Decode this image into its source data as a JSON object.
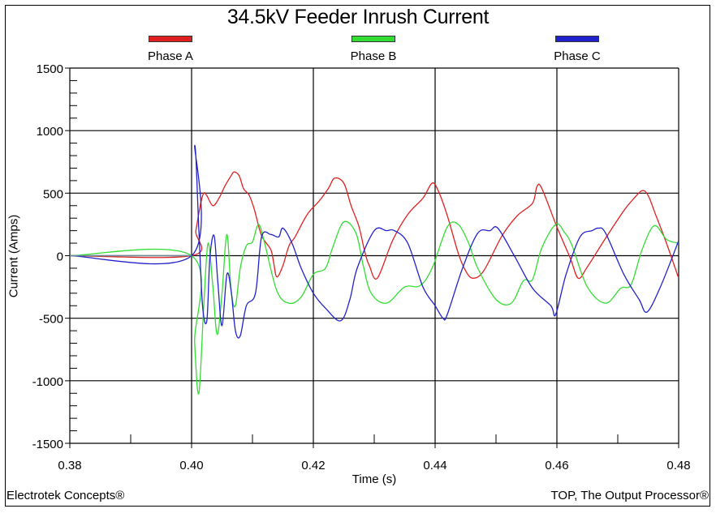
{
  "chart_data": {
    "type": "line",
    "title": "34.5kV Feeder Inrush Current",
    "xlabel": "Time (s)",
    "ylabel": "Current (Amps)",
    "xlim": [
      0.38,
      0.48
    ],
    "ylim": [
      -1500,
      1500
    ],
    "xticks": [
      "0.38",
      "0.40",
      "0.42",
      "0.44",
      "0.46",
      "0.48"
    ],
    "yticks": [
      "1500",
      "1000",
      "500",
      "0",
      "-500",
      "-1000",
      "-1500"
    ],
    "grid": true,
    "legend_position": "top",
    "series": [
      {
        "name": "Phase A",
        "color": "#e02020",
        "x": [
          0.38,
          0.4,
          0.4007,
          0.4015,
          0.402,
          0.4025,
          0.4035,
          0.4045,
          0.4055,
          0.4065,
          0.407,
          0.4078,
          0.4085,
          0.409,
          0.4095,
          0.4103,
          0.4115,
          0.413,
          0.4135,
          0.414,
          0.415,
          0.416,
          0.417,
          0.419,
          0.421,
          0.4225,
          0.4235,
          0.425,
          0.4262,
          0.4275,
          0.4285,
          0.4292,
          0.4305,
          0.433,
          0.4355,
          0.438,
          0.4395,
          0.4405,
          0.442,
          0.4438,
          0.445,
          0.4462,
          0.448,
          0.451,
          0.4535,
          0.456,
          0.4567,
          0.4575,
          0.46,
          0.4622,
          0.4635,
          0.465,
          0.468,
          0.471,
          0.4725,
          0.474,
          0.475,
          0.4762,
          0.478,
          0.48
        ],
        "values": [
          0,
          0,
          200,
          420,
          500,
          480,
          400,
          460,
          560,
          640,
          670,
          640,
          540,
          510,
          480,
          370,
          160,
          50,
          -60,
          -170,
          -80,
          80,
          150,
          330,
          440,
          540,
          620,
          580,
          400,
          230,
          20,
          -80,
          -180,
          120,
          330,
          460,
          580,
          520,
          320,
          20,
          -120,
          -180,
          -120,
          160,
          320,
          420,
          550,
          540,
          230,
          -20,
          -180,
          -90,
          140,
          360,
          450,
          520,
          480,
          330,
          100,
          -180
        ]
      },
      {
        "name": "Phase B",
        "color": "#33dd33",
        "x": [
          0.38,
          0.4,
          0.4005,
          0.4012,
          0.402,
          0.4027,
          0.4035,
          0.4042,
          0.405,
          0.4058,
          0.4065,
          0.4072,
          0.408,
          0.409,
          0.41,
          0.411,
          0.412,
          0.414,
          0.416,
          0.418,
          0.42,
          0.422,
          0.4232,
          0.425,
          0.427,
          0.4282,
          0.4295,
          0.432,
          0.435,
          0.4375,
          0.4395,
          0.442,
          0.4438,
          0.4455,
          0.447,
          0.45,
          0.4525,
          0.4545,
          0.456,
          0.4575,
          0.4598,
          0.4612,
          0.4625,
          0.465,
          0.468,
          0.4705,
          0.4722,
          0.474,
          0.476,
          0.478,
          0.48
        ],
        "values": [
          0,
          0,
          -700,
          -1100,
          -400,
          100,
          -250,
          -630,
          -300,
          170,
          -280,
          -400,
          -100,
          80,
          110,
          250,
          100,
          -280,
          -380,
          -330,
          -150,
          -100,
          70,
          270,
          180,
          -80,
          -300,
          -380,
          -250,
          -240,
          -100,
          230,
          250,
          100,
          -100,
          -350,
          -380,
          -200,
          -190,
          60,
          250,
          190,
          80,
          -250,
          -380,
          -260,
          -230,
          50,
          240,
          130,
          100
        ]
      },
      {
        "name": "Phase C",
        "color": "#2222cc",
        "x": [
          0.38,
          0.4,
          0.4005,
          0.4012,
          0.4018,
          0.4025,
          0.403,
          0.4037,
          0.4043,
          0.405,
          0.4058,
          0.4065,
          0.4072,
          0.408,
          0.409,
          0.4105,
          0.4115,
          0.413,
          0.4143,
          0.415,
          0.4165,
          0.418,
          0.42,
          0.422,
          0.4245,
          0.426,
          0.4272,
          0.43,
          0.432,
          0.4333,
          0.4355,
          0.438,
          0.44,
          0.4413,
          0.442,
          0.4445,
          0.447,
          0.449,
          0.4503,
          0.453,
          0.456,
          0.459,
          0.4598,
          0.4615,
          0.4638,
          0.4658,
          0.4668,
          0.468,
          0.471,
          0.4735,
          0.4748,
          0.477,
          0.48
        ],
        "values": [
          0,
          0,
          880,
          200,
          -400,
          -520,
          -20,
          160,
          -200,
          -560,
          -150,
          -280,
          -600,
          -640,
          -400,
          -300,
          150,
          170,
          150,
          220,
          100,
          -100,
          -300,
          -420,
          -520,
          -350,
          -100,
          200,
          200,
          200,
          100,
          -250,
          -400,
          -500,
          -470,
          -100,
          180,
          200,
          220,
          0,
          -260,
          -400,
          -470,
          -150,
          150,
          200,
          220,
          180,
          -150,
          -350,
          -450,
          -250,
          120
        ]
      }
    ]
  },
  "annotations": {
    "footer_left": "Electrotek Concepts®",
    "footer_right": "TOP, The Output Processor®"
  }
}
